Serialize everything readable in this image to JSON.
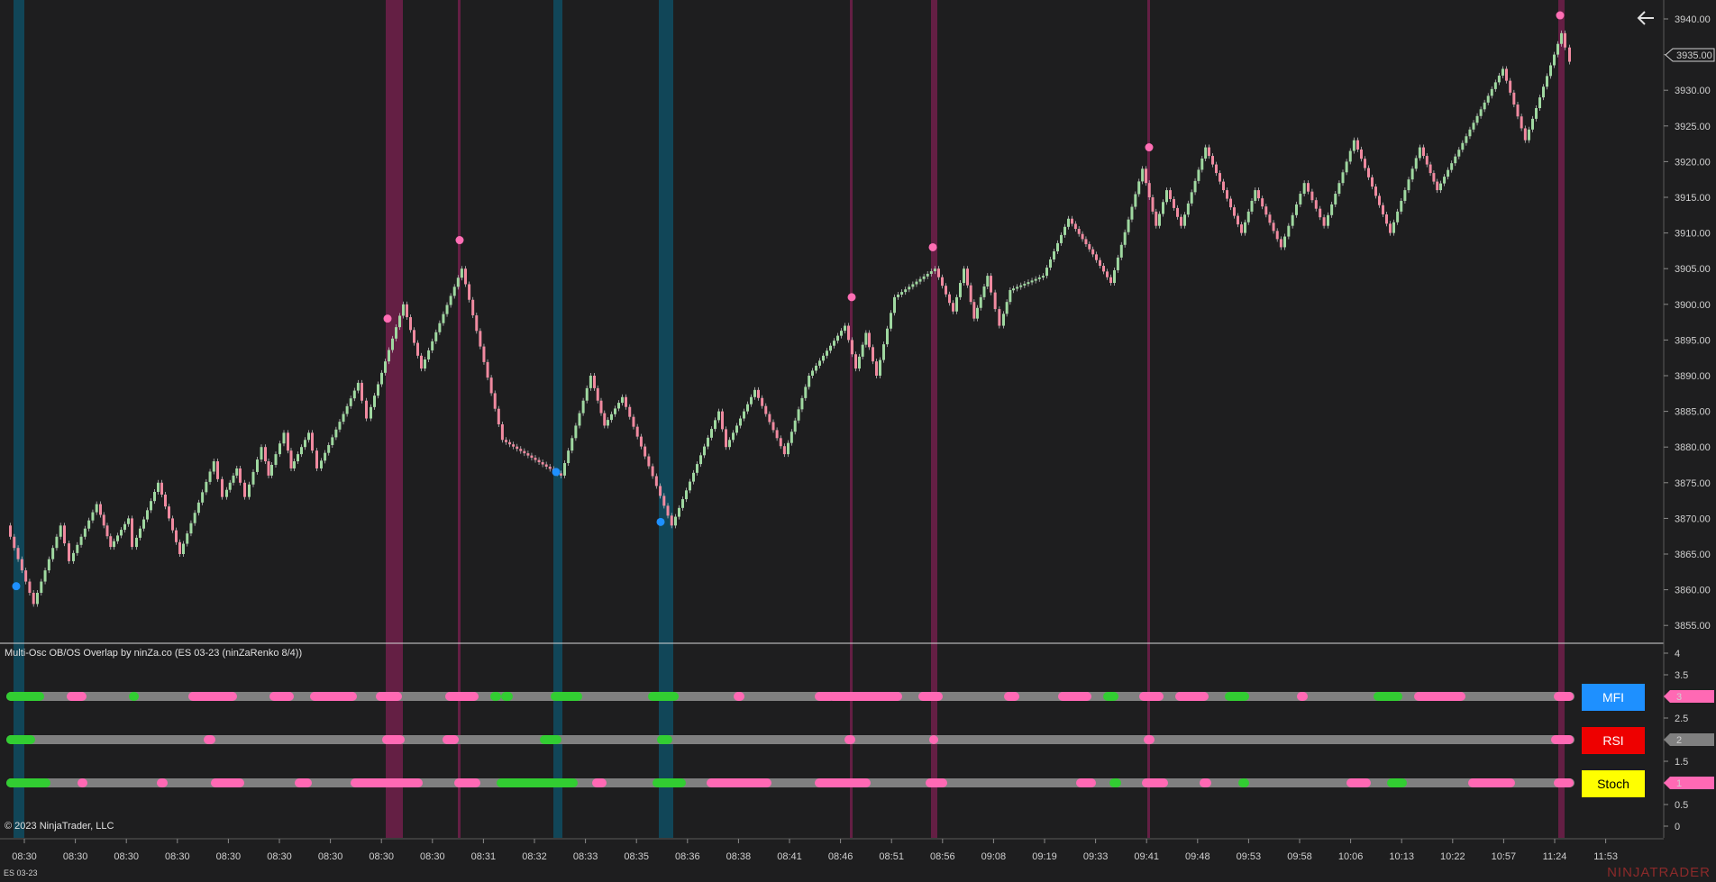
{
  "colors": {
    "background": "#1e1e1f",
    "up_bar": "#9fd8a0",
    "down_bar": "#f08aa0",
    "ob_marker": "#ff6eb4",
    "os_marker": "#1e90ff",
    "ob_band": "#6b1f48",
    "os_band": "#0f4a5e",
    "track_neutral": "#808080",
    "track_ob": "#ff69b4",
    "track_os": "#32cd32"
  },
  "price_axis": {
    "ticks": [
      "3940.00",
      "3935.00",
      "3930.00",
      "3925.00",
      "3920.00",
      "3915.00",
      "3910.00",
      "3905.00",
      "3900.00",
      "3895.00",
      "3890.00",
      "3885.00",
      "3880.00",
      "3875.00",
      "3870.00",
      "3865.00",
      "3860.00",
      "3855.00"
    ],
    "current_price": "3935.00"
  },
  "indicator_axis": {
    "ticks": [
      "4",
      "3.5",
      "3",
      "2.5",
      "2",
      "1.5",
      "1",
      "0.5",
      "0"
    ],
    "markers": [
      "3",
      "2",
      "1"
    ]
  },
  "time_axis": {
    "labels": [
      "08:30",
      "08:30",
      "08:30",
      "08:30",
      "08:30",
      "08:30",
      "08:30",
      "08:30",
      "08:30",
      "08:31",
      "08:32",
      "08:33",
      "08:35",
      "08:36",
      "08:38",
      "08:41",
      "08:46",
      "08:51",
      "08:56",
      "09:08",
      "09:19",
      "09:33",
      "09:41",
      "09:48",
      "09:53",
      "09:58",
      "10:06",
      "10:13",
      "10:22",
      "10:57",
      "11:24",
      "11:53"
    ]
  },
  "indicator": {
    "title": "Multi-Osc OB/OS Overlap by ninZa.co (ES 03-23 (ninZaRenko 8/4))",
    "legend": [
      {
        "label": "MFI",
        "bg": "#1e90ff",
        "fg": "#ffffff"
      },
      {
        "label": "RSI",
        "bg": "#ee0000",
        "fg": "#ffffff"
      },
      {
        "label": "Stoch",
        "bg": "#ffff00",
        "fg": "#000000"
      }
    ]
  },
  "footer": {
    "copyright": "© 2023 NinjaTrader, LLC",
    "instrument": "ES 03-23",
    "brand": "NINJATRADER"
  }
}
